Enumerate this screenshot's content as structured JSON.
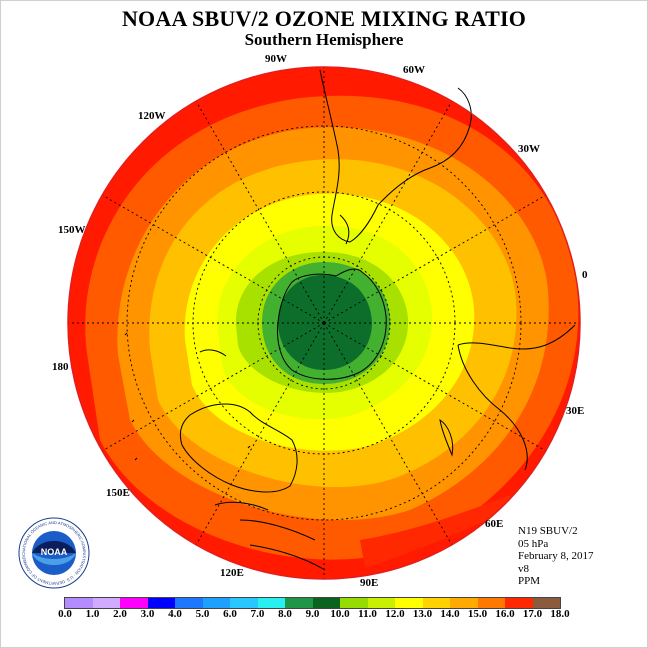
{
  "header": {
    "title": "NOAA SBUV/2 OZONE MIXING RATIO",
    "subtitle": "Southern Hemisphere"
  },
  "map": {
    "projection": "south polar stereographic",
    "longitude_labels": [
      "90W",
      "60W",
      "30W",
      "0",
      "30E",
      "60E",
      "90E",
      "120E",
      "150E",
      "180",
      "150W",
      "120W"
    ],
    "colors": {
      "band_17": "#ff1a00",
      "band_16": "#ff5a00",
      "band_15": "#ff9400",
      "band_14": "#ffc000",
      "band_13": "#ffff00",
      "band_12": "#e6ff00",
      "band_11": "#a8e000",
      "band_10": "#44b030",
      "band_9": "#0c6e2a",
      "coastline": "#000000"
    }
  },
  "info": {
    "instrument": "N19 SBUV/2",
    "pressure": "05 hPa",
    "date": "February 8, 2017",
    "version": "v8",
    "units": "PPM"
  },
  "colorbar": {
    "labels": [
      "0.0",
      "1.0",
      "2.0",
      "3.0",
      "4.0",
      "5.0",
      "6.0",
      "7.0",
      "8.0",
      "9.0",
      "10.0",
      "11.0",
      "12.0",
      "13.0",
      "14.0",
      "15.0",
      "16.0",
      "17.0",
      "18.0"
    ],
    "colors": [
      "#b48cff",
      "#d2aaff",
      "#ff00ff",
      "#0000ff",
      "#1e78ff",
      "#1ea0ff",
      "#28c8ff",
      "#28f0f0",
      "#1e9646",
      "#0a641e",
      "#96dc00",
      "#c8f000",
      "#ffff00",
      "#ffd200",
      "#ffaa00",
      "#ff7800",
      "#ff2800",
      "#8c5a3c"
    ]
  },
  "logo": {
    "text": "NOAA",
    "ring_text": "NATIONAL OCEANIC AND ATMOSPHERIC ADMINISTRATION · U.S. DEPARTMENT OF COMMERCE"
  }
}
